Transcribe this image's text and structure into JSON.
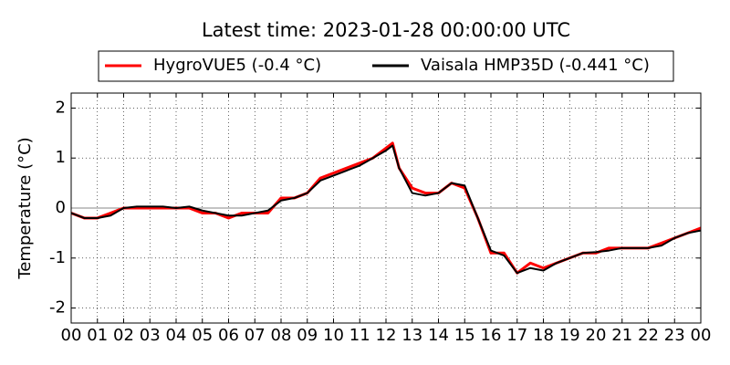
{
  "chart_data": {
    "type": "line",
    "title": "Latest time: 2023-01-28 00:00:00 UTC",
    "y_label": "Temperature (°C)",
    "x": [
      0,
      0.5,
      1,
      1.5,
      2,
      2.5,
      3,
      3.5,
      4,
      4.5,
      5,
      5.5,
      6,
      6.5,
      7,
      7.5,
      8,
      8.5,
      9,
      9.5,
      10,
      10.5,
      11,
      11.5,
      12,
      12.25,
      12.5,
      13,
      13.5,
      14,
      14.5,
      15,
      15.5,
      16,
      16.5,
      17,
      17.5,
      18,
      18.5,
      19,
      19.5,
      20,
      20.5,
      21,
      21.5,
      22,
      22.5,
      23,
      23.5,
      24
    ],
    "series": [
      {
        "name": "HygroVUE5 (-0.4 °C)",
        "color": "#ff0000",
        "values": [
          -0.1,
          -0.2,
          -0.2,
          -0.1,
          0.0,
          0.0,
          0.0,
          0.0,
          0.0,
          0.0,
          -0.1,
          -0.1,
          -0.2,
          -0.1,
          -0.1,
          -0.1,
          0.2,
          0.2,
          0.3,
          0.6,
          0.7,
          0.8,
          0.9,
          1.0,
          1.2,
          1.3,
          0.8,
          0.4,
          0.3,
          0.3,
          0.5,
          0.4,
          -0.2,
          -0.9,
          -0.9,
          -1.3,
          -1.1,
          -1.2,
          -1.1,
          -1.0,
          -0.9,
          -0.9,
          -0.8,
          -0.8,
          -0.8,
          -0.8,
          -0.7,
          -0.6,
          -0.5,
          -0.4
        ]
      },
      {
        "name": "Vaisala HMP35D (-0.441 °C)",
        "color": "#000000",
        "values": [
          -0.1,
          -0.2,
          -0.2,
          -0.15,
          0.0,
          0.03,
          0.03,
          0.03,
          0.0,
          0.03,
          -0.05,
          -0.1,
          -0.15,
          -0.15,
          -0.1,
          -0.05,
          0.15,
          0.2,
          0.3,
          0.55,
          0.65,
          0.75,
          0.85,
          1.0,
          1.15,
          1.25,
          0.8,
          0.3,
          0.25,
          0.3,
          0.5,
          0.45,
          -0.2,
          -0.85,
          -0.95,
          -1.3,
          -1.2,
          -1.25,
          -1.1,
          -1.0,
          -0.9,
          -0.88,
          -0.85,
          -0.8,
          -0.8,
          -0.8,
          -0.75,
          -0.6,
          -0.5,
          -0.45
        ]
      }
    ],
    "xlim": [
      0,
      24
    ],
    "xticks": [
      {
        "value": 0,
        "label": "00"
      },
      {
        "value": 1,
        "label": "01"
      },
      {
        "value": 2,
        "label": "02"
      },
      {
        "value": 3,
        "label": "03"
      },
      {
        "value": 4,
        "label": "04"
      },
      {
        "value": 5,
        "label": "05"
      },
      {
        "value": 6,
        "label": "06"
      },
      {
        "value": 7,
        "label": "07"
      },
      {
        "value": 8,
        "label": "08"
      },
      {
        "value": 9,
        "label": "09"
      },
      {
        "value": 10,
        "label": "10"
      },
      {
        "value": 11,
        "label": "11"
      },
      {
        "value": 12,
        "label": "12"
      },
      {
        "value": 13,
        "label": "13"
      },
      {
        "value": 14,
        "label": "14"
      },
      {
        "value": 15,
        "label": "15"
      },
      {
        "value": 16,
        "label": "16"
      },
      {
        "value": 17,
        "label": "17"
      },
      {
        "value": 18,
        "label": "18"
      },
      {
        "value": 19,
        "label": "19"
      },
      {
        "value": 20,
        "label": "20"
      },
      {
        "value": 21,
        "label": "21"
      },
      {
        "value": 22,
        "label": "22"
      },
      {
        "value": 23,
        "label": "23"
      },
      {
        "value": 24,
        "label": "00"
      }
    ],
    "ylim": [
      -2.3,
      2.3
    ],
    "yticks": [
      -2,
      -1,
      0,
      1,
      2
    ],
    "grid": true,
    "zero_line": true,
    "legend": "top"
  }
}
